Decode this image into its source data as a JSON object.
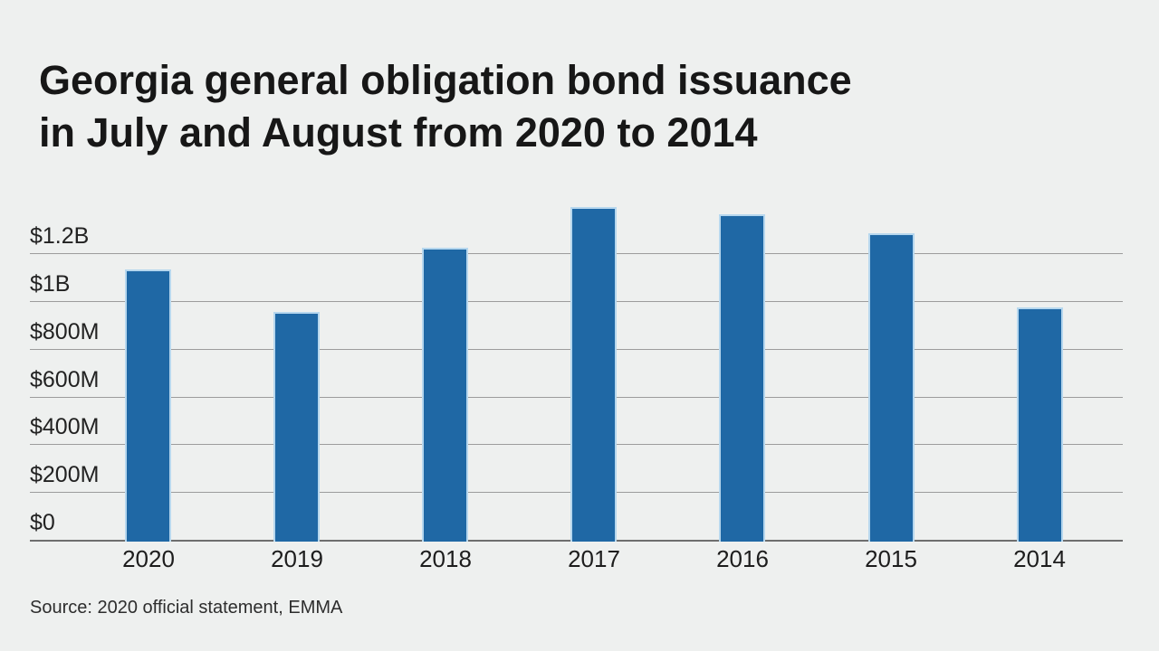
{
  "page": {
    "background_color": "#eef0ef"
  },
  "title": {
    "line1": "Georgia general obligation bond issuance",
    "line2": "in July and August from 2020 to 2014"
  },
  "source": {
    "text": "Source: 2020 official statement, EMMA"
  },
  "chart_data": {
    "type": "bar",
    "title": "Georgia general obligation bond issuance in July and August from 2020 to 2014",
    "categories": [
      "2020",
      "2019",
      "2018",
      "2017",
      "2016",
      "2015",
      "2014"
    ],
    "values": [
      1.14,
      0.96,
      1.23,
      1.4,
      1.37,
      1.29,
      0.98
    ],
    "unit": "USD billions",
    "y_ticks": [
      {
        "label": "$1.2B",
        "value": 1.2
      },
      {
        "label": "$1B",
        "value": 1.0
      },
      {
        "label": "$800M",
        "value": 0.8
      },
      {
        "label": "$600M",
        "value": 0.6
      },
      {
        "label": "$400M",
        "value": 0.4
      },
      {
        "label": "$200M",
        "value": 0.2
      },
      {
        "label": "$0",
        "value": 0.0
      }
    ],
    "ylim": [
      0,
      1.2
    ],
    "grid": "horizontal",
    "legend": "none",
    "source": "Source: 2020 official statement, EMMA",
    "colors": {
      "bar_fill": "#1f68a5",
      "bar_edge": "#b6d7ee",
      "gridline": "#9c9c9c",
      "baseline": "#6e6e6e"
    }
  }
}
